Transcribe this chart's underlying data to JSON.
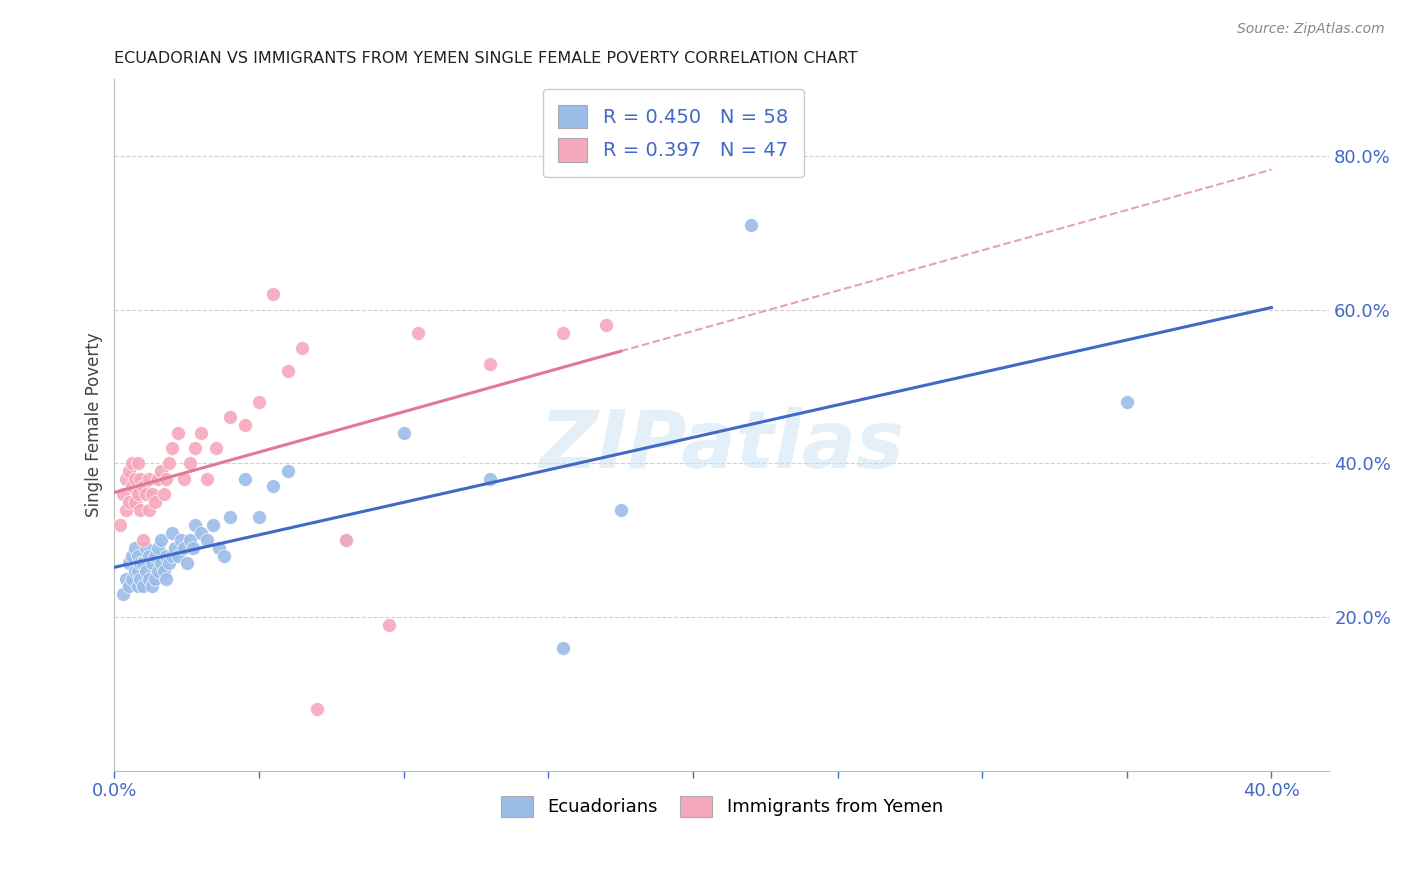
{
  "title": "ECUADORIAN VS IMMIGRANTS FROM YEMEN SINGLE FEMALE POVERTY CORRELATION CHART",
  "source": "Source: ZipAtlas.com",
  "ylabel": "Single Female Poverty",
  "xlim": [
    0.0,
    0.42
  ],
  "ylim": [
    0.0,
    0.9
  ],
  "yticks": [
    0.2,
    0.4,
    0.6,
    0.8
  ],
  "xticks": [
    0.0,
    0.05,
    0.1,
    0.15,
    0.2,
    0.25,
    0.3,
    0.35,
    0.4
  ],
  "ytick_labels": [
    "20.0%",
    "40.0%",
    "60.0%",
    "80.0%"
  ],
  "blue_color": "#9bbde8",
  "pink_color": "#f5a8bc",
  "blue_line_color": "#4169c8",
  "pink_line_color": "#e07898",
  "blue_R": 0.45,
  "blue_N": 58,
  "pink_R": 0.397,
  "pink_N": 47,
  "legend_label_blue": "Ecuadorians",
  "legend_label_pink": "Immigrants from Yemen",
  "watermark": "ZIPatlas",
  "axis_color": "#4169c8",
  "blue_scatter_x": [
    0.003,
    0.004,
    0.005,
    0.005,
    0.006,
    0.006,
    0.007,
    0.007,
    0.008,
    0.008,
    0.008,
    0.009,
    0.009,
    0.01,
    0.01,
    0.011,
    0.011,
    0.012,
    0.012,
    0.013,
    0.013,
    0.014,
    0.014,
    0.015,
    0.015,
    0.016,
    0.016,
    0.017,
    0.018,
    0.018,
    0.019,
    0.02,
    0.02,
    0.021,
    0.022,
    0.023,
    0.024,
    0.025,
    0.026,
    0.027,
    0.028,
    0.03,
    0.032,
    0.034,
    0.036,
    0.038,
    0.04,
    0.045,
    0.05,
    0.055,
    0.06,
    0.08,
    0.1,
    0.13,
    0.155,
    0.175,
    0.22,
    0.35
  ],
  "blue_scatter_y": [
    0.23,
    0.25,
    0.27,
    0.24,
    0.25,
    0.28,
    0.26,
    0.29,
    0.24,
    0.26,
    0.28,
    0.25,
    0.27,
    0.24,
    0.27,
    0.26,
    0.29,
    0.25,
    0.28,
    0.24,
    0.27,
    0.25,
    0.28,
    0.26,
    0.29,
    0.27,
    0.3,
    0.26,
    0.28,
    0.25,
    0.27,
    0.28,
    0.31,
    0.29,
    0.28,
    0.3,
    0.29,
    0.27,
    0.3,
    0.29,
    0.32,
    0.31,
    0.3,
    0.32,
    0.29,
    0.28,
    0.33,
    0.38,
    0.33,
    0.37,
    0.39,
    0.3,
    0.44,
    0.38,
    0.16,
    0.34,
    0.71,
    0.48
  ],
  "pink_scatter_x": [
    0.002,
    0.003,
    0.004,
    0.004,
    0.005,
    0.005,
    0.006,
    0.006,
    0.007,
    0.007,
    0.008,
    0.008,
    0.009,
    0.009,
    0.01,
    0.01,
    0.011,
    0.012,
    0.012,
    0.013,
    0.014,
    0.015,
    0.016,
    0.017,
    0.018,
    0.019,
    0.02,
    0.022,
    0.024,
    0.026,
    0.028,
    0.03,
    0.032,
    0.035,
    0.04,
    0.045,
    0.05,
    0.055,
    0.06,
    0.065,
    0.07,
    0.08,
    0.095,
    0.105,
    0.13,
    0.155,
    0.17
  ],
  "pink_scatter_y": [
    0.32,
    0.36,
    0.34,
    0.38,
    0.35,
    0.39,
    0.37,
    0.4,
    0.35,
    0.38,
    0.36,
    0.4,
    0.34,
    0.38,
    0.3,
    0.37,
    0.36,
    0.34,
    0.38,
    0.36,
    0.35,
    0.38,
    0.39,
    0.36,
    0.38,
    0.4,
    0.42,
    0.44,
    0.38,
    0.4,
    0.42,
    0.44,
    0.38,
    0.42,
    0.46,
    0.45,
    0.48,
    0.62,
    0.52,
    0.55,
    0.08,
    0.3,
    0.19,
    0.57,
    0.53,
    0.57,
    0.58
  ]
}
